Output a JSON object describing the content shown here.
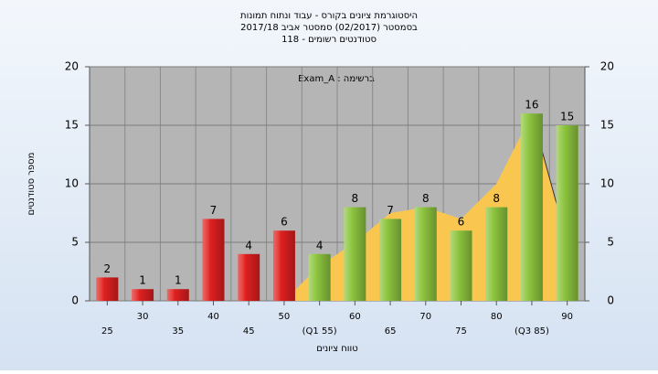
{
  "chart_data": {
    "type": "bar",
    "title": "היסטוגרמת ציונים בקורס - עבוד ונתוח תמונות",
    "subtitle": "בסמסטר  (02/2017)  סמסטר אביב 2017/18",
    "subtitle2": "סטודנטים רשומים - 118",
    "annotation": "Exam_A : ברשימה",
    "x_label": "טווח ציונים",
    "y_label": "מספר סטודנטים",
    "categories": [
      "25",
      "30",
      "35",
      "40",
      "45",
      "50",
      "(Q1 55)",
      "60",
      "65",
      "70",
      "75",
      "80",
      "(Q3 85)",
      "90"
    ],
    "values": [
      2,
      1,
      1,
      7,
      4,
      6,
      4,
      8,
      7,
      8,
      6,
      8,
      16,
      15
    ],
    "colors": [
      "#e02020",
      "#e02020",
      "#e02020",
      "#e02020",
      "#e02020",
      "#e02020",
      "#8ec63f",
      "#8ec63f",
      "#8ec63f",
      "#8ec63f",
      "#8ec63f",
      "#8ec63f",
      "#8ec63f",
      "#8ec63f"
    ],
    "area": {
      "color": "#f9c74f",
      "values": [
        null,
        null,
        null,
        null,
        null,
        0,
        3,
        5,
        7.5,
        8,
        7,
        10,
        16,
        5
      ]
    },
    "ylim": [
      0,
      20
    ],
    "yticks": [
      0,
      5,
      10,
      15,
      20
    ],
    "y2lim": [
      0,
      20
    ],
    "y2ticks": [
      0,
      5,
      10,
      15,
      20
    ],
    "grid": true
  }
}
